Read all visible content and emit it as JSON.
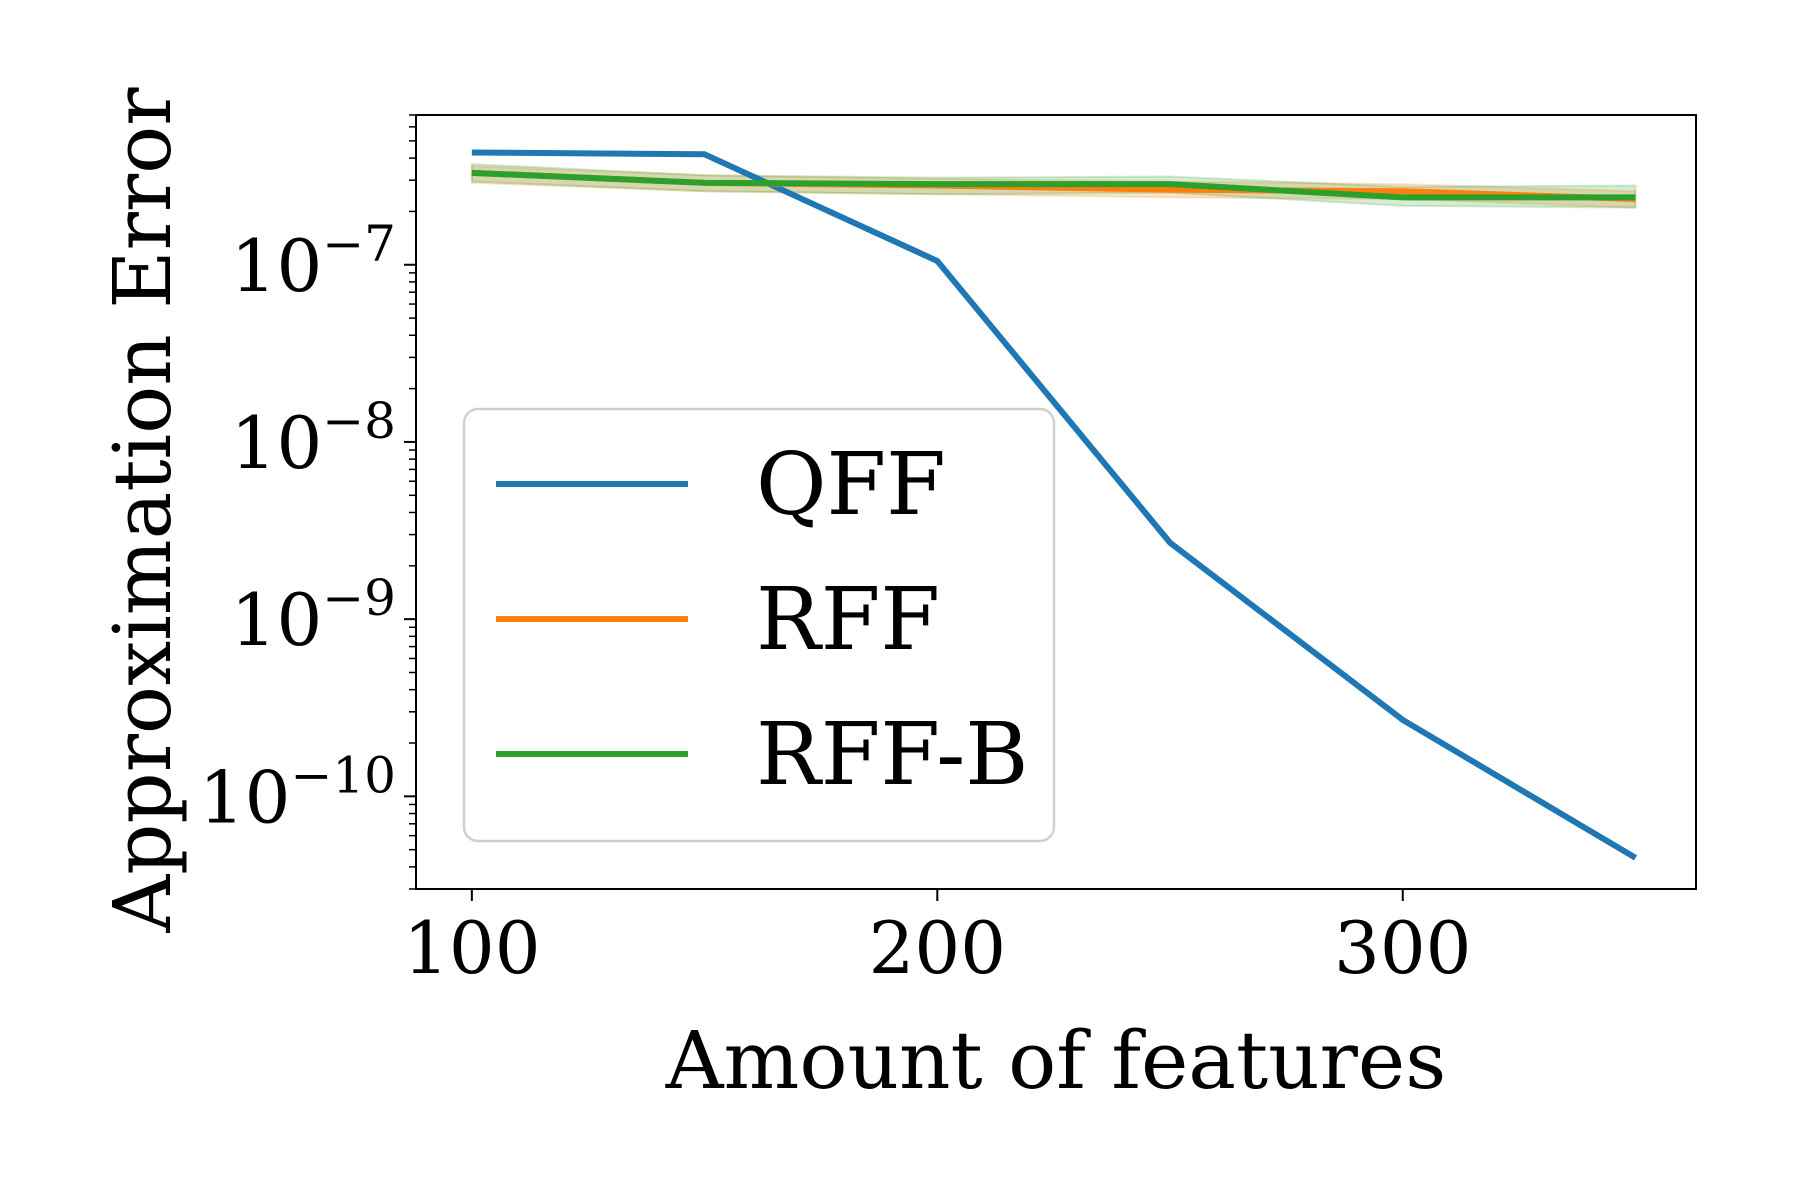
{
  "chart_data": {
    "type": "line",
    "xlabel": "Amount of features",
    "ylabel": "Approximation Error",
    "y_scale": "log",
    "xlim": [
      88,
      363
    ],
    "ylim": [
      3e-11,
      7e-07
    ],
    "x_ticks": [
      {
        "value": 100,
        "label": "100"
      },
      {
        "value": 200,
        "label": "200"
      },
      {
        "value": 300,
        "label": "300"
      }
    ],
    "y_ticks": [
      {
        "value": 1e-07,
        "mantissa": "10",
        "exponent": "−7"
      },
      {
        "value": 1e-08,
        "mantissa": "10",
        "exponent": "−8"
      },
      {
        "value": 1e-09,
        "mantissa": "10",
        "exponent": "−9"
      },
      {
        "value": 1e-10,
        "mantissa": "10",
        "exponent": "−10"
      }
    ],
    "x": [
      100,
      150,
      200,
      250,
      300,
      350
    ],
    "series": [
      {
        "name": "QFF",
        "color": "#1f77b4",
        "values": [
          4.3e-07,
          4.2e-07,
          1.05e-07,
          2.7e-09,
          2.7e-10,
          4.5e-11
        ]
      },
      {
        "name": "RFF",
        "color": "#ff7f0e",
        "values": [
          3.3e-07,
          2.9e-07,
          2.8e-07,
          2.65e-07,
          2.6e-07,
          2.35e-07
        ],
        "band_lower": [
          2.9e-07,
          2.6e-07,
          2.5e-07,
          2.4e-07,
          2.35e-07,
          2.1e-07
        ],
        "band_upper": [
          3.6e-07,
          3.2e-07,
          3.05e-07,
          2.95e-07,
          2.85e-07,
          2.6e-07
        ]
      },
      {
        "name": "RFF-B",
        "color": "#2ca02c",
        "values": [
          3.3e-07,
          2.9e-07,
          2.85e-07,
          2.85e-07,
          2.4e-07,
          2.4e-07
        ],
        "band_lower": [
          2.95e-07,
          2.6e-07,
          2.5e-07,
          2.55e-07,
          2.15e-07,
          2.1e-07
        ],
        "band_upper": [
          3.7e-07,
          3.2e-07,
          3.1e-07,
          3.15e-07,
          2.75e-07,
          2.8e-07
        ]
      }
    ],
    "legend": {
      "placement": "center-left"
    },
    "grid": false
  }
}
